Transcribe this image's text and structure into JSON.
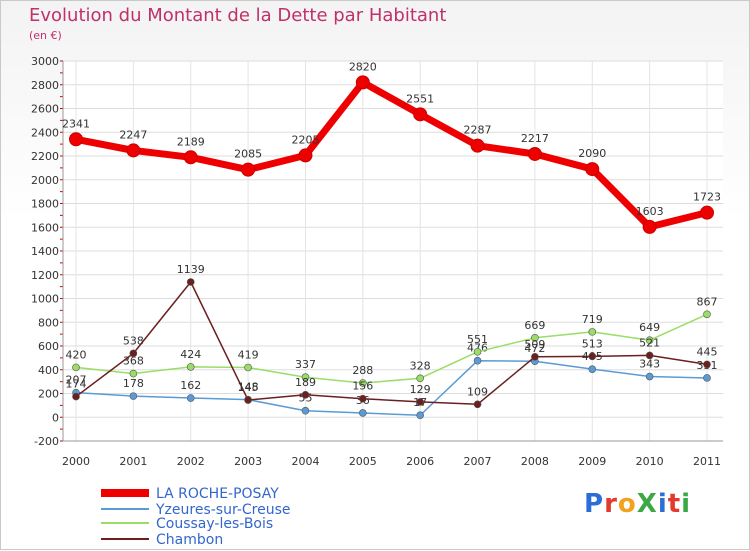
{
  "chart_data": {
    "type": "line",
    "title": "Evolution du Montant de la Dette par Habitant",
    "subtitle": "(en €)",
    "x": [
      "2000",
      "2001",
      "2002",
      "2003",
      "2004",
      "2005",
      "2006",
      "2007",
      "2008",
      "2009",
      "2010",
      "2011"
    ],
    "ylim": [
      -200,
      3000
    ],
    "yticks": [
      -200,
      0,
      200,
      400,
      600,
      800,
      1000,
      1200,
      1400,
      1600,
      1800,
      2000,
      2200,
      2400,
      2600,
      2800,
      3000
    ],
    "grid": true,
    "legend_position": "bottom-left",
    "series": [
      {
        "name": "LA ROCHE-POSAY",
        "color": "#ee0000",
        "values": [
          2341,
          2247,
          2189,
          2085,
          2205,
          2820,
          2551,
          2287,
          2217,
          2090,
          1603,
          1723
        ]
      },
      {
        "name": "Yzeures-sur-Creuse",
        "color": "#5b9bd5",
        "values": [
          207,
          178,
          162,
          148,
          55,
          36,
          17,
          476,
          472,
          405,
          343,
          331
        ]
      },
      {
        "name": "Coussay-les-Bois",
        "color": "#99dd66",
        "values": [
          420,
          368,
          424,
          419,
          337,
          288,
          328,
          551,
          669,
          719,
          649,
          867
        ]
      },
      {
        "name": "Chambon",
        "color": "#6b1f1f",
        "values": [
          174,
          538,
          1139,
          145,
          189,
          156,
          129,
          109,
          509,
          513,
          521,
          445
        ]
      }
    ]
  },
  "branding": {
    "logo_text": "ProXiti",
    "letters": [
      "P",
      "r",
      "o",
      "X",
      "i",
      "t",
      "i"
    ]
  }
}
